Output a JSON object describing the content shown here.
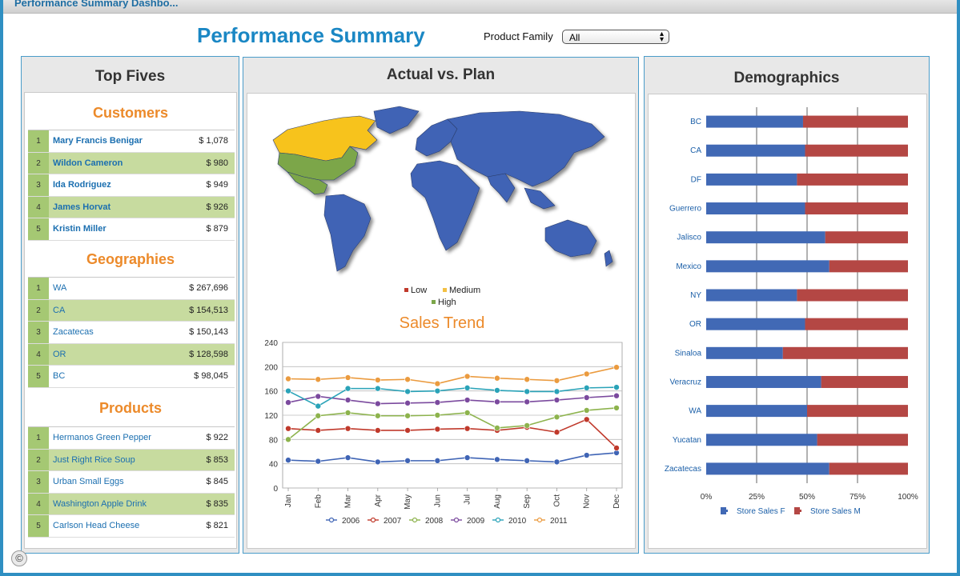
{
  "window": {
    "title": "Performance Summary Dashbo..."
  },
  "header": {
    "title": "Performance Summary",
    "product_family_label": "Product Family",
    "product_family_value": "All"
  },
  "top_fives": {
    "title": "Top Fives",
    "customers": {
      "title": "Customers",
      "rows": [
        {
          "rank": "1",
          "name": "Mary Francis Benigar",
          "amount": "$ 1,078"
        },
        {
          "rank": "2",
          "name": "Wildon Cameron",
          "amount": "$ 980"
        },
        {
          "rank": "3",
          "name": "Ida Rodriguez",
          "amount": "$ 949"
        },
        {
          "rank": "4",
          "name": "James Horvat",
          "amount": "$ 926"
        },
        {
          "rank": "5",
          "name": "Kristin Miller",
          "amount": "$ 879"
        }
      ]
    },
    "geographies": {
      "title": "Geographies",
      "rows": [
        {
          "rank": "1",
          "name": "WA",
          "amount": "$ 267,696"
        },
        {
          "rank": "2",
          "name": "CA",
          "amount": "$ 154,513"
        },
        {
          "rank": "3",
          "name": "Zacatecas",
          "amount": "$ 150,143"
        },
        {
          "rank": "4",
          "name": "OR",
          "amount": "$ 128,598"
        },
        {
          "rank": "5",
          "name": "BC",
          "amount": "$ 98,045"
        }
      ]
    },
    "products": {
      "title": "Products",
      "rows": [
        {
          "rank": "1",
          "name": "Hermanos Green Pepper",
          "amount": "$ 922"
        },
        {
          "rank": "2",
          "name": "Just Right Rice Soup",
          "amount": "$ 853"
        },
        {
          "rank": "3",
          "name": "Urban Small Eggs",
          "amount": "$ 845"
        },
        {
          "rank": "4",
          "name": "Washington Apple Drink",
          "amount": "$ 835"
        },
        {
          "rank": "5",
          "name": "Carlson Head Cheese",
          "amount": "$ 821"
        }
      ]
    }
  },
  "actual_vs_plan": {
    "title": "Actual vs. Plan",
    "map_legend": [
      {
        "label": "Low",
        "color": "#c0392b"
      },
      {
        "label": "Medium",
        "color": "#f3c043"
      },
      {
        "label": "High",
        "color": "#7ba64a"
      }
    ],
    "map_colors": {
      "ocean": "#ffffff",
      "low": "#3f64b5",
      "medium": "#f7c31f",
      "high": "#7ba64a"
    }
  },
  "demographics": {
    "title": "Demographics"
  },
  "chart_data": [
    {
      "type": "line",
      "title": "Sales Trend",
      "xlabel": "",
      "ylabel": "",
      "categories": [
        "Jan",
        "Feb",
        "Mar",
        "Apr",
        "May",
        "Jun",
        "Jul",
        "Aug",
        "Sep",
        "Oct",
        "Nov",
        "Dec"
      ],
      "ylim": [
        0,
        240
      ],
      "yticks": [
        0,
        40,
        80,
        120,
        160,
        200,
        240
      ],
      "grid": true,
      "legend": "bottom",
      "series": [
        {
          "name": "2006",
          "color": "#3f64b5",
          "values": [
            46,
            44,
            50,
            43,
            45,
            45,
            50,
            47,
            45,
            43,
            54,
            58
          ]
        },
        {
          "name": "2007",
          "color": "#c0392b",
          "values": [
            98,
            95,
            98,
            95,
            95,
            97,
            98,
            95,
            100,
            92,
            113,
            66
          ]
        },
        {
          "name": "2008",
          "color": "#8db34d",
          "values": [
            80,
            119,
            124,
            119,
            119,
            120,
            124,
            99,
            103,
            117,
            128,
            132
          ]
        },
        {
          "name": "2009",
          "color": "#7b4a9e",
          "values": [
            141,
            151,
            145,
            139,
            140,
            141,
            145,
            142,
            142,
            145,
            149,
            152
          ]
        },
        {
          "name": "2010",
          "color": "#2aa3b8",
          "values": [
            160,
            135,
            164,
            164,
            159,
            160,
            165,
            161,
            159,
            159,
            165,
            166
          ]
        },
        {
          "name": "2011",
          "color": "#eb9b3f",
          "values": [
            180,
            179,
            182,
            178,
            179,
            172,
            184,
            181,
            179,
            177,
            188,
            199
          ]
        }
      ]
    },
    {
      "type": "bar",
      "stacked": "percent",
      "orientation": "horizontal",
      "categories": [
        "BC",
        "CA",
        "DF",
        "Guerrero",
        "Jalisco",
        "Mexico",
        "NY",
        "OR",
        "Sinaloa",
        "Veracruz",
        "WA",
        "Yucatan",
        "Zacatecas"
      ],
      "xlim": [
        0,
        100
      ],
      "xticks": [
        "0%",
        "25%",
        "50%",
        "75%",
        "100%"
      ],
      "grid": true,
      "legend": "bottom",
      "series": [
        {
          "name": "Store Sales F",
          "color": "#4169b5",
          "values": [
            48,
            49,
            45,
            49,
            59,
            61,
            45,
            49,
            38,
            57,
            50,
            55,
            61
          ]
        },
        {
          "name": "Store Sales M",
          "color": "#b44744",
          "values": [
            52,
            51,
            55,
            51,
            41,
            39,
            55,
            51,
            62,
            43,
            50,
            45,
            39
          ]
        }
      ]
    }
  ]
}
